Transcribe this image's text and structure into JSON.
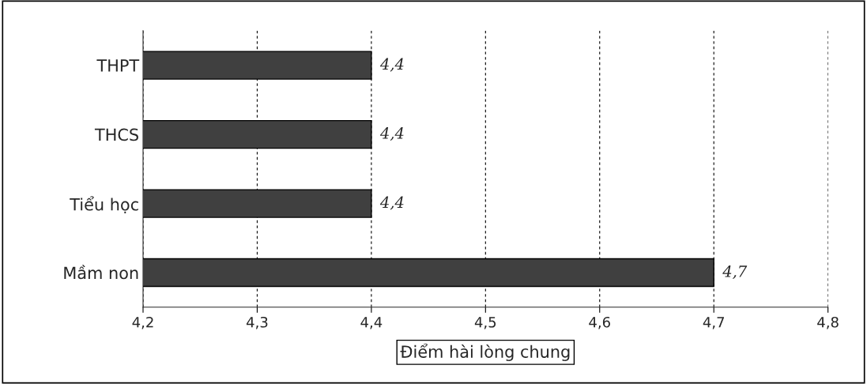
{
  "chart_data": {
    "type": "bar",
    "orientation": "horizontal",
    "xlabel": "Điểm hài lòng chung",
    "categories": [
      "THPT",
      "THCS",
      "Tiểu học",
      "Mầm non"
    ],
    "values": [
      4.4,
      4.4,
      4.4,
      4.7
    ],
    "color": "#404040",
    "value_labels": [
      "4,4",
      "4,4",
      "4,4",
      "4,7"
    ],
    "xlim": [
      4.2,
      4.8
    ],
    "xticks": [
      {
        "value": 4.2,
        "label": "4,2"
      },
      {
        "value": 4.3,
        "label": "4,3"
      },
      {
        "value": 4.4,
        "label": "4,4"
      },
      {
        "value": 4.5,
        "label": "4,5"
      },
      {
        "value": 4.6,
        "label": "4,6"
      },
      {
        "value": 4.7,
        "label": "4,7"
      },
      {
        "value": 4.8,
        "label": "4,8"
      }
    ],
    "grid": "x"
  }
}
